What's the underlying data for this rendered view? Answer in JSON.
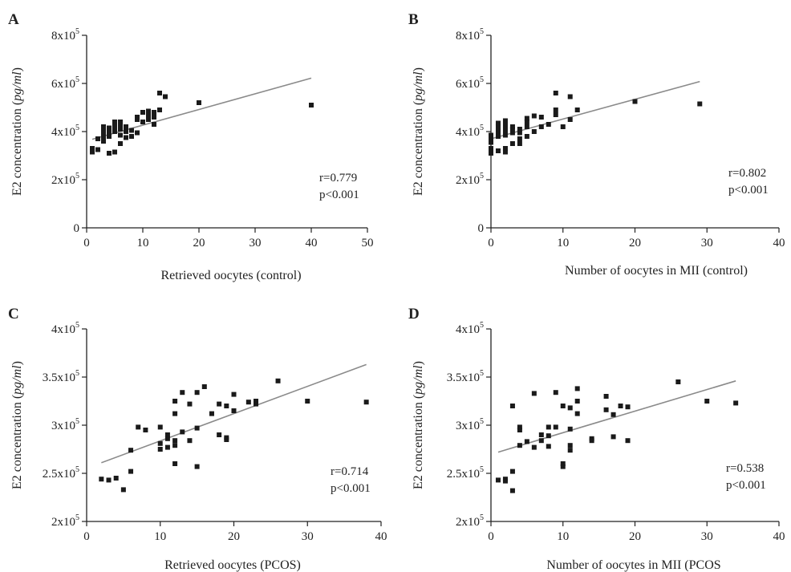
{
  "chart_data": [
    {
      "type": "scatter",
      "panel": "A",
      "xlabel": "Retrieved oocytes (control)",
      "ylabel_main": "E2 concentration (",
      "ylabel_italic": "pg/ml",
      "ylabel_close": ")",
      "xlim": [
        0,
        50
      ],
      "ylim": [
        0,
        800000
      ],
      "xticks": [
        0,
        10,
        20,
        30,
        40,
        50
      ],
      "yticks": [
        {
          "value": 0,
          "mantissa": "0",
          "exp": ""
        },
        {
          "value": 200000,
          "mantissa": "2x10",
          "exp": "5"
        },
        {
          "value": 400000,
          "mantissa": "4x10",
          "exp": "5"
        },
        {
          "value": 600000,
          "mantissa": "6x10",
          "exp": "5"
        },
        {
          "value": 800000,
          "mantissa": "8x10",
          "exp": "5"
        }
      ],
      "r_text": "r=0.779",
      "p_text": "p<0.001",
      "trendline": {
        "x": [
          1,
          40
        ],
        "y": [
          368000,
          622000
        ]
      },
      "points": [
        [
          1,
          315000
        ],
        [
          1,
          330000
        ],
        [
          2,
          325000
        ],
        [
          2,
          370000
        ],
        [
          3,
          360000
        ],
        [
          3,
          380000
        ],
        [
          3,
          390000
        ],
        [
          3,
          420000
        ],
        [
          3,
          405000
        ],
        [
          4,
          310000
        ],
        [
          4,
          395000
        ],
        [
          4,
          415000
        ],
        [
          4,
          380000
        ],
        [
          5,
          315000
        ],
        [
          5,
          400000
        ],
        [
          5,
          420000
        ],
        [
          5,
          440000
        ],
        [
          6,
          350000
        ],
        [
          6,
          385000
        ],
        [
          6,
          410000
        ],
        [
          6,
          430000
        ],
        [
          6,
          440000
        ],
        [
          7,
          375000
        ],
        [
          7,
          400000
        ],
        [
          7,
          420000
        ],
        [
          8,
          380000
        ],
        [
          8,
          405000
        ],
        [
          9,
          395000
        ],
        [
          9,
          450000
        ],
        [
          9,
          460000
        ],
        [
          10,
          440000
        ],
        [
          10,
          480000
        ],
        [
          11,
          450000
        ],
        [
          11,
          470000
        ],
        [
          11,
          485000
        ],
        [
          12,
          430000
        ],
        [
          12,
          460000
        ],
        [
          12,
          480000
        ],
        [
          13,
          490000
        ],
        [
          13,
          560000
        ],
        [
          14,
          545000
        ],
        [
          20,
          520000
        ],
        [
          40,
          510000
        ]
      ]
    },
    {
      "type": "scatter",
      "panel": "B",
      "xlabel": "Number of oocytes in MII (control)",
      "ylabel_main": "E2 concentration (",
      "ylabel_italic": "pg/ml",
      "ylabel_close": ")",
      "xlim": [
        0,
        40
      ],
      "ylim": [
        0,
        800000
      ],
      "xticks": [
        0,
        10,
        20,
        30,
        40
      ],
      "yticks": [
        {
          "value": 0,
          "mantissa": "0",
          "exp": ""
        },
        {
          "value": 200000,
          "mantissa": "2x10",
          "exp": "5"
        },
        {
          "value": 400000,
          "mantissa": "4x10",
          "exp": "5"
        },
        {
          "value": 600000,
          "mantissa": "6x10",
          "exp": "5"
        },
        {
          "value": 800000,
          "mantissa": "8x10",
          "exp": "5"
        }
      ],
      "r_text": "r=0.802",
      "p_text": "p<0.001",
      "trendline": {
        "x": [
          0,
          29
        ],
        "y": [
          370000,
          608000
        ]
      },
      "points": [
        [
          0,
          310000
        ],
        [
          0,
          330000
        ],
        [
          0,
          355000
        ],
        [
          0,
          370000
        ],
        [
          0,
          385000
        ],
        [
          1,
          320000
        ],
        [
          1,
          380000
        ],
        [
          1,
          400000
        ],
        [
          1,
          420000
        ],
        [
          1,
          435000
        ],
        [
          2,
          315000
        ],
        [
          2,
          330000
        ],
        [
          2,
          385000
        ],
        [
          2,
          405000
        ],
        [
          2,
          425000
        ],
        [
          2,
          445000
        ],
        [
          3,
          350000
        ],
        [
          3,
          395000
        ],
        [
          3,
          410000
        ],
        [
          3,
          420000
        ],
        [
          4,
          350000
        ],
        [
          4,
          370000
        ],
        [
          4,
          395000
        ],
        [
          4,
          410000
        ],
        [
          5,
          380000
        ],
        [
          5,
          420000
        ],
        [
          5,
          440000
        ],
        [
          5,
          455000
        ],
        [
          6,
          400000
        ],
        [
          6,
          465000
        ],
        [
          7,
          420000
        ],
        [
          7,
          460000
        ],
        [
          8,
          430000
        ],
        [
          9,
          470000
        ],
        [
          9,
          490000
        ],
        [
          9,
          560000
        ],
        [
          10,
          420000
        ],
        [
          11,
          450000
        ],
        [
          11,
          545000
        ],
        [
          12,
          490000
        ],
        [
          20,
          525000
        ],
        [
          29,
          515000
        ]
      ]
    },
    {
      "type": "scatter",
      "panel": "C",
      "xlabel": "Retrieved oocytes (PCOS)",
      "ylabel_main": "E2 concentration (",
      "ylabel_italic": "pg/ml",
      "ylabel_close": ")",
      "xlim": [
        0,
        40
      ],
      "ylim": [
        200000,
        400000
      ],
      "xticks": [
        0,
        10,
        20,
        30,
        40
      ],
      "yticks": [
        {
          "value": 200000,
          "mantissa": "2x10",
          "exp": "5"
        },
        {
          "value": 250000,
          "mantissa": "2.5x10",
          "exp": "5"
        },
        {
          "value": 300000,
          "mantissa": "3x10",
          "exp": "5"
        },
        {
          "value": 350000,
          "mantissa": "3.5x10",
          "exp": "5"
        },
        {
          "value": 400000,
          "mantissa": "4x10",
          "exp": "5"
        }
      ],
      "r_text": "r=0.714",
      "p_text": "p<0.001",
      "trendline": {
        "x": [
          2,
          38
        ],
        "y": [
          261000,
          363000
        ]
      },
      "points": [
        [
          2,
          244000
        ],
        [
          3,
          243000
        ],
        [
          4,
          245000
        ],
        [
          5,
          233000
        ],
        [
          6,
          252000
        ],
        [
          6,
          274000
        ],
        [
          7,
          298000
        ],
        [
          8,
          295000
        ],
        [
          10,
          275000
        ],
        [
          10,
          281000
        ],
        [
          10,
          298000
        ],
        [
          11,
          277000
        ],
        [
          11,
          286000
        ],
        [
          11,
          290000
        ],
        [
          12,
          260000
        ],
        [
          12,
          279000
        ],
        [
          12,
          284000
        ],
        [
          12,
          312000
        ],
        [
          12,
          325000
        ],
        [
          13,
          293000
        ],
        [
          13,
          334000
        ],
        [
          14,
          284000
        ],
        [
          14,
          322000
        ],
        [
          15,
          257000
        ],
        [
          15,
          297000
        ],
        [
          15,
          334000
        ],
        [
          16,
          340000
        ],
        [
          17,
          312000
        ],
        [
          18,
          290000
        ],
        [
          18,
          322000
        ],
        [
          19,
          285000
        ],
        [
          19,
          287000
        ],
        [
          19,
          320000
        ],
        [
          20,
          315000
        ],
        [
          20,
          332000
        ],
        [
          22,
          324000
        ],
        [
          23,
          322000
        ],
        [
          23,
          325000
        ],
        [
          26,
          346000
        ],
        [
          30,
          325000
        ],
        [
          38,
          324000
        ]
      ]
    },
    {
      "type": "scatter",
      "panel": "D",
      "xlabel": "Number of oocytes in MII (PCOS",
      "ylabel_main": "E2 concentration (",
      "ylabel_italic": "pg/ml",
      "ylabel_close": ")",
      "xlim": [
        0,
        40
      ],
      "ylim": [
        200000,
        400000
      ],
      "xticks": [
        0,
        10,
        20,
        30,
        40
      ],
      "yticks": [
        {
          "value": 200000,
          "mantissa": "2x10",
          "exp": "5"
        },
        {
          "value": 250000,
          "mantissa": "2.5x10",
          "exp": "5"
        },
        {
          "value": 300000,
          "mantissa": "3x10",
          "exp": "5"
        },
        {
          "value": 350000,
          "mantissa": "3.5x10",
          "exp": "5"
        },
        {
          "value": 400000,
          "mantissa": "4x10",
          "exp": "5"
        }
      ],
      "r_text": "r=0.538",
      "p_text": "p<0.001",
      "trendline": {
        "x": [
          1,
          34
        ],
        "y": [
          272000,
          346000
        ]
      },
      "points": [
        [
          1,
          243000
        ],
        [
          2,
          242000
        ],
        [
          2,
          244000
        ],
        [
          3,
          232000
        ],
        [
          3,
          252000
        ],
        [
          3,
          320000
        ],
        [
          4,
          279000
        ],
        [
          4,
          295000
        ],
        [
          4,
          298000
        ],
        [
          5,
          283000
        ],
        [
          6,
          277000
        ],
        [
          6,
          333000
        ],
        [
          7,
          284000
        ],
        [
          7,
          290000
        ],
        [
          8,
          278000
        ],
        [
          8,
          289000
        ],
        [
          8,
          298000
        ],
        [
          9,
          298000
        ],
        [
          9,
          334000
        ],
        [
          10,
          257000
        ],
        [
          10,
          260000
        ],
        [
          10,
          320000
        ],
        [
          11,
          274000
        ],
        [
          11,
          279000
        ],
        [
          11,
          296000
        ],
        [
          11,
          318000
        ],
        [
          12,
          312000
        ],
        [
          12,
          325000
        ],
        [
          12,
          338000
        ],
        [
          14,
          284000
        ],
        [
          14,
          286000
        ],
        [
          16,
          316000
        ],
        [
          16,
          330000
        ],
        [
          17,
          288000
        ],
        [
          17,
          311000
        ],
        [
          18,
          320000
        ],
        [
          19,
          284000
        ],
        [
          19,
          319000
        ],
        [
          26,
          345000
        ],
        [
          30,
          325000
        ],
        [
          34,
          323000
        ]
      ]
    }
  ]
}
